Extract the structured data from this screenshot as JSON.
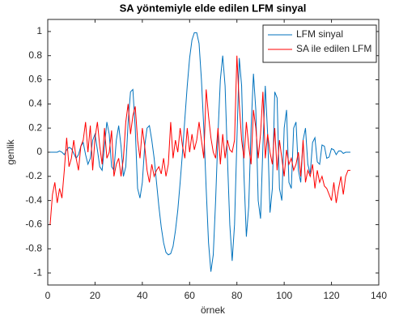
{
  "chart_data": {
    "type": "line",
    "title": "SA yöntemiyle elde edilen LFM sinyal",
    "x_label": "örnek",
    "y_label": "genlik",
    "x": [
      1,
      2,
      3,
      4,
      5,
      6,
      7,
      8,
      9,
      10,
      11,
      12,
      13,
      14,
      15,
      16,
      17,
      18,
      19,
      20,
      21,
      22,
      23,
      24,
      25,
      26,
      27,
      28,
      29,
      30,
      31,
      32,
      33,
      34,
      35,
      36,
      37,
      38,
      39,
      40,
      41,
      42,
      43,
      44,
      45,
      46,
      47,
      48,
      49,
      50,
      51,
      52,
      53,
      54,
      55,
      56,
      57,
      58,
      59,
      60,
      61,
      62,
      63,
      64,
      65,
      66,
      67,
      68,
      69,
      70,
      71,
      72,
      73,
      74,
      75,
      76,
      77,
      78,
      79,
      80,
      81,
      82,
      83,
      84,
      85,
      86,
      87,
      88,
      89,
      90,
      91,
      92,
      93,
      94,
      95,
      96,
      97,
      98,
      99,
      100,
      101,
      102,
      103,
      104,
      105,
      106,
      107,
      108,
      109,
      110,
      111,
      112,
      113,
      114,
      115,
      116,
      117,
      118,
      119,
      120,
      121,
      122,
      123,
      124,
      125,
      126,
      127,
      128
    ],
    "series": [
      {
        "name": "LFM sinyal",
        "color": "#0072bd",
        "values": [
          0,
          0,
          0,
          0,
          0.01,
          0,
          -0.02,
          0.02,
          0.04,
          0.03,
          -0.01,
          -0.05,
          -0.02,
          0.05,
          0.08,
          -0.02,
          -0.1,
          -0.05,
          0.1,
          0.15,
          0.02,
          -0.12,
          -0.15,
          0.05,
          0.25,
          0.15,
          -0.12,
          -0.15,
          0.1,
          0.22,
          0.05,
          -0.2,
          -0.12,
          0.25,
          0.5,
          0.52,
          0.2,
          -0.3,
          -0.38,
          -0.25,
          0.05,
          0.2,
          0.22,
          0.1,
          -0.05,
          -0.25,
          -0.45,
          -0.62,
          -0.75,
          -0.83,
          -0.85,
          -0.84,
          -0.78,
          -0.65,
          -0.48,
          -0.25,
          0,
          0.28,
          0.55,
          0.78,
          0.93,
          0.99,
          0.99,
          0.9,
          0.6,
          0.2,
          -0.3,
          -0.75,
          -0.99,
          -0.85,
          -0.4,
          0.15,
          0.6,
          0.8,
          0.55,
          -0.05,
          -0.6,
          -0.9,
          -0.6,
          0.1,
          0.78,
          0.55,
          -0.2,
          -0.7,
          -0.45,
          0.2,
          0.65,
          0.35,
          -0.4,
          -0.55,
          0.05,
          0.55,
          0.15,
          -0.5,
          -0.3,
          0.5,
          0.45,
          -0.3,
          -0.4,
          0.2,
          0.35,
          -0.25,
          -0.3,
          0.2,
          0.25,
          -0.15,
          -0.25,
          0.1,
          0.2,
          -0.1,
          -0.18,
          0.08,
          0.12,
          -0.08,
          -0.1,
          0.06,
          0.05,
          -0.05,
          -0.04,
          0.03,
          0.02,
          -0.02,
          0.01,
          0.01,
          -0.01,
          0,
          0,
          0
        ]
      },
      {
        "name": "SA ile edilen LFM",
        "color": "#ff0000",
        "values": [
          -0.6,
          -0.35,
          -0.25,
          -0.42,
          -0.3,
          -0.38,
          -0.15,
          0.12,
          -0.12,
          -0.05,
          0.1,
          -0.05,
          -0.15,
          0.05,
          0.1,
          0.25,
          0,
          0.22,
          -0.15,
          0.12,
          0.25,
          0.05,
          -0.1,
          0.2,
          -0.05,
          0,
          0.18,
          -0.2,
          -0.1,
          -0.05,
          -0.2,
          -0.05,
          0.25,
          0.4,
          0.15,
          0.3,
          0.38,
          0.1,
          -0.05,
          0.2,
          0.05,
          -0.15,
          -0.25,
          -0.1,
          -0.2,
          -0.15,
          -0.12,
          -0.18,
          -0.05,
          -0.2,
          -0.1,
          0.25,
          -0.05,
          0.1,
          0,
          0.2,
          0.05,
          -0.05,
          0.2,
          0,
          0.15,
          0.02,
          0.1,
          0.25,
          0.1,
          -0.05,
          0.52,
          0.3,
          0.12,
          0,
          -0.05,
          0.2,
          -0.1,
          0.15,
          -0.05,
          0.1,
          0.02,
          0,
          0.1,
          0.8,
          0.4,
          0.1,
          -0.05,
          0.25,
          0.05,
          -0.1,
          0.35,
          0.2,
          -0.05,
          0.15,
          0.5,
          -0.05,
          0.15,
          0,
          -0.1,
          0.2,
          -0.15,
          0.1,
          -0.05,
          -0.2,
          0.02,
          -0.1,
          -0.05,
          -0.15,
          -0.1,
          0,
          -0.2,
          0.1,
          -0.25,
          -0.15,
          -0.2,
          -0.1,
          -0.3,
          -0.15,
          -0.25,
          -0.2,
          -0.28,
          -0.3,
          -0.35,
          -0.4,
          -0.25,
          -0.42,
          -0.3,
          -0.2,
          -0.35,
          -0.2,
          -0.15,
          -0.15
        ]
      }
    ],
    "xlim": [
      0,
      140
    ],
    "xticks": [
      0,
      20,
      40,
      60,
      80,
      100,
      120,
      140
    ],
    "ylim": [
      -1.1,
      1.1
    ],
    "yticks": [
      -1,
      -0.8,
      -0.6,
      -0.4,
      -0.2,
      0,
      0.2,
      0.4,
      0.6,
      0.8,
      1
    ],
    "grid": false,
    "legend": "top-right"
  }
}
